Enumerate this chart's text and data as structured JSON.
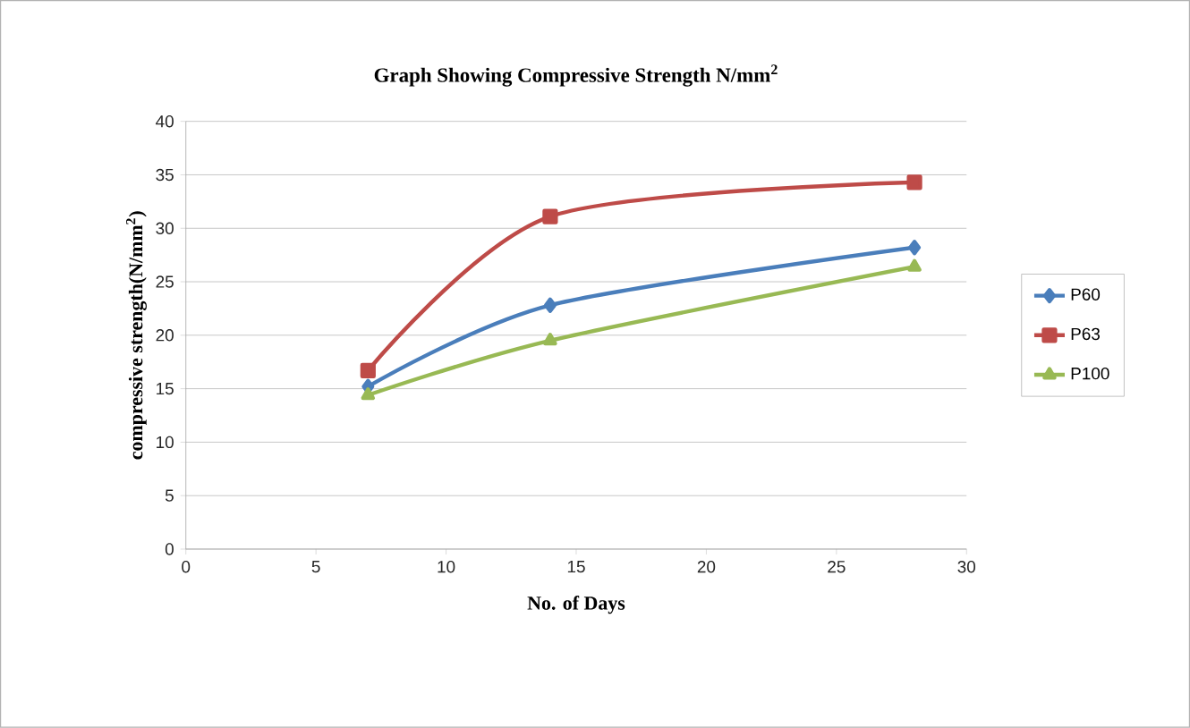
{
  "chart_data": {
    "type": "line",
    "title": "Graph Showing Compressive Strength N/mm$^{2}$",
    "xlabel": "No. of Days",
    "ylabel": "compressive strength(N/mm$^{2}$)",
    "x": [
      7,
      14,
      28
    ],
    "series": [
      {
        "name": "P60",
        "color": "#4a7ebb",
        "values": [
          15.2,
          22.8,
          28.2
        ],
        "marker": "diamond"
      },
      {
        "name": "P63",
        "color": "#be4b48",
        "values": [
          16.7,
          31.1,
          34.3
        ],
        "marker": "square"
      },
      {
        "name": "P100",
        "color": "#98b954",
        "values": [
          14.4,
          19.5,
          26.4
        ],
        "marker": "triangle"
      }
    ],
    "xlim": [
      0,
      30
    ],
    "xticks": [
      0,
      5,
      10,
      15,
      20,
      25,
      30
    ],
    "ylim": [
      0,
      40
    ],
    "yticks": [
      0,
      5,
      10,
      15,
      20,
      25,
      30,
      35,
      40
    ],
    "grid": "y",
    "legend": "right",
    "line_style": "solid"
  }
}
